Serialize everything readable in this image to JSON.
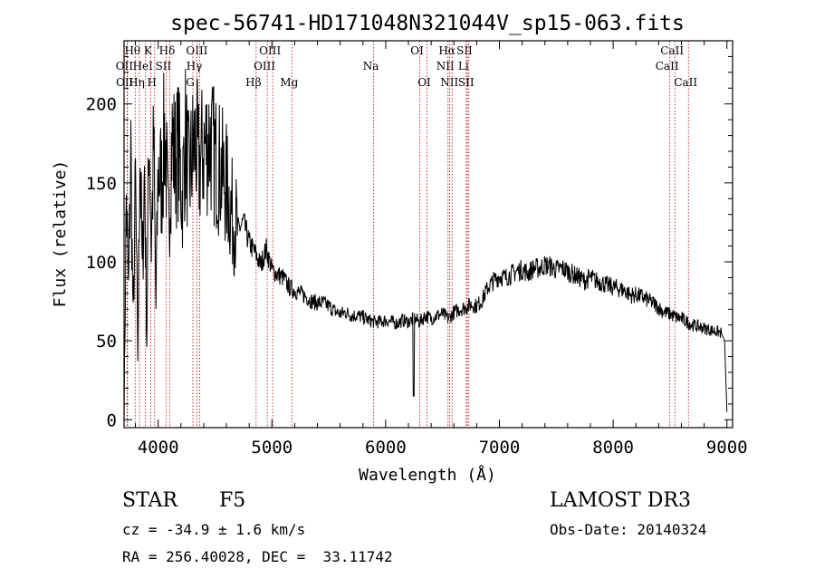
{
  "chart_data": {
    "type": "line",
    "title": "spec-56741-HD171048N321044V_sp15-063.fits",
    "xlabel": "Wavelength (Å)",
    "ylabel": "Flux (relative)",
    "xlim": [
      3700,
      9050
    ],
    "ylim": [
      -5,
      240
    ],
    "xticks": [
      4000,
      5000,
      6000,
      7000,
      8000,
      9000
    ],
    "yticks": [
      0,
      50,
      100,
      150,
      200
    ],
    "series": [
      {
        "name": "flux",
        "x": [
          3700,
          3720,
          3740,
          3760,
          3780,
          3800,
          3820,
          3840,
          3860,
          3880,
          3900,
          3920,
          3940,
          3960,
          3980,
          4000,
          4030,
          4060,
          4090,
          4120,
          4150,
          4180,
          4210,
          4240,
          4270,
          4300,
          4330,
          4360,
          4400,
          4450,
          4500,
          4550,
          4600,
          4650,
          4700,
          4750,
          4800,
          4850,
          4900,
          4950,
          5000,
          5050,
          5100,
          5150,
          5200,
          5250,
          5300,
          5350,
          5400,
          5450,
          5500,
          5550,
          5600,
          5650,
          5700,
          5750,
          5800,
          5850,
          5900,
          5950,
          6000,
          6050,
          6100,
          6150,
          6200,
          6250,
          6300,
          6350,
          6400,
          6450,
          6500,
          6550,
          6600,
          6650,
          6700,
          6750,
          6800,
          6850,
          6900,
          6950,
          7000,
          7050,
          7100,
          7150,
          7200,
          7250,
          7300,
          7350,
          7400,
          7450,
          7500,
          7550,
          7600,
          7650,
          7700,
          7750,
          7800,
          7850,
          7900,
          7950,
          8000,
          8050,
          8100,
          8150,
          8200,
          8250,
          8300,
          8350,
          8400,
          8450,
          8500,
          8550,
          8600,
          8650,
          8700,
          8750,
          8800,
          8850,
          8900,
          8950,
          8980,
          9000
        ],
        "y": [
          5,
          140,
          80,
          170,
          60,
          150,
          40,
          180,
          90,
          160,
          50,
          190,
          110,
          175,
          70,
          160,
          150,
          185,
          120,
          178,
          165,
          172,
          140,
          180,
          150,
          168,
          176,
          160,
          172,
          178,
          165,
          158,
          148,
          130,
          120,
          125,
          112,
          106,
          98,
          108,
          95,
          92,
          90,
          84,
          82,
          80,
          78,
          75,
          74,
          74,
          72,
          69,
          67,
          68,
          66,
          66,
          65,
          63,
          62,
          62,
          63,
          62,
          61,
          63,
          62,
          64,
          62,
          66,
          64,
          66,
          67,
          64,
          68,
          70,
          71,
          73,
          72,
          76,
          84,
          88,
          91,
          90,
          92,
          94,
          95,
          93,
          96,
          96,
          98,
          97,
          95,
          96,
          94,
          92,
          90,
          88,
          90,
          88,
          87,
          85,
          84,
          83,
          82,
          79,
          79,
          78,
          76,
          74,
          71,
          68,
          67,
          65,
          64,
          62,
          60,
          59,
          58,
          57,
          56,
          55,
          50,
          5
        ]
      }
    ],
    "line_markers": [
      {
        "label": "Hθ",
        "x": 3798,
        "row": 0
      },
      {
        "label": "OII",
        "x": 3727,
        "row": 1
      },
      {
        "label": "OII",
        "x": 3730,
        "row": 2
      },
      {
        "label": "Hη",
        "x": 3835,
        "row": 2
      },
      {
        "label": "HeI",
        "x": 3889,
        "row": 1
      },
      {
        "label": "K",
        "x": 3934,
        "row": 0
      },
      {
        "label": "H",
        "x": 3969,
        "row": 2
      },
      {
        "label": "SII",
        "x": 4069,
        "row": 1
      },
      {
        "label": "Hδ",
        "x": 4102,
        "row": 0
      },
      {
        "label": "OIII",
        "x": 4364,
        "row": 0
      },
      {
        "label": "Hγ",
        "x": 4341,
        "row": 1
      },
      {
        "label": "G",
        "x": 4305,
        "row": 2
      },
      {
        "label": "Hβ",
        "x": 4861,
        "row": 2
      },
      {
        "label": "OIII",
        "x": 5007,
        "row": 0
      },
      {
        "label": "OIII",
        "x": 4959,
        "row": 1
      },
      {
        "label": "Mg",
        "x": 5175,
        "row": 2
      },
      {
        "label": "Na",
        "x": 5894,
        "row": 1
      },
      {
        "label": "OI",
        "x": 6300,
        "row": 0
      },
      {
        "label": "OI",
        "x": 6363,
        "row": 2
      },
      {
        "label": "Hα",
        "x": 6563,
        "row": 0
      },
      {
        "label": "SII",
        "x": 6717,
        "row": 0
      },
      {
        "label": "NII",
        "x": 6548,
        "row": 1
      },
      {
        "label": "Li",
        "x": 6708,
        "row": 1
      },
      {
        "label": "NII",
        "x": 6584,
        "row": 2
      },
      {
        "label": "SII",
        "x": 6731,
        "row": 2
      },
      {
        "label": "CaII",
        "x": 8542,
        "row": 0
      },
      {
        "label": "CaII",
        "x": 8498,
        "row": 1
      },
      {
        "label": "CaII",
        "x": 8662,
        "row": 2
      }
    ],
    "colors": {
      "spectrum": "#000000",
      "marker": "#c00000"
    }
  },
  "info": {
    "obj_class": "STAR",
    "subclass": "F5",
    "survey": "LAMOST DR3",
    "cz": "cz = -34.9 ± 1.6 km/s",
    "obs_date": "Obs-Date: 20140324",
    "coords": "RA = 256.40028, DEC =  33.11742"
  }
}
